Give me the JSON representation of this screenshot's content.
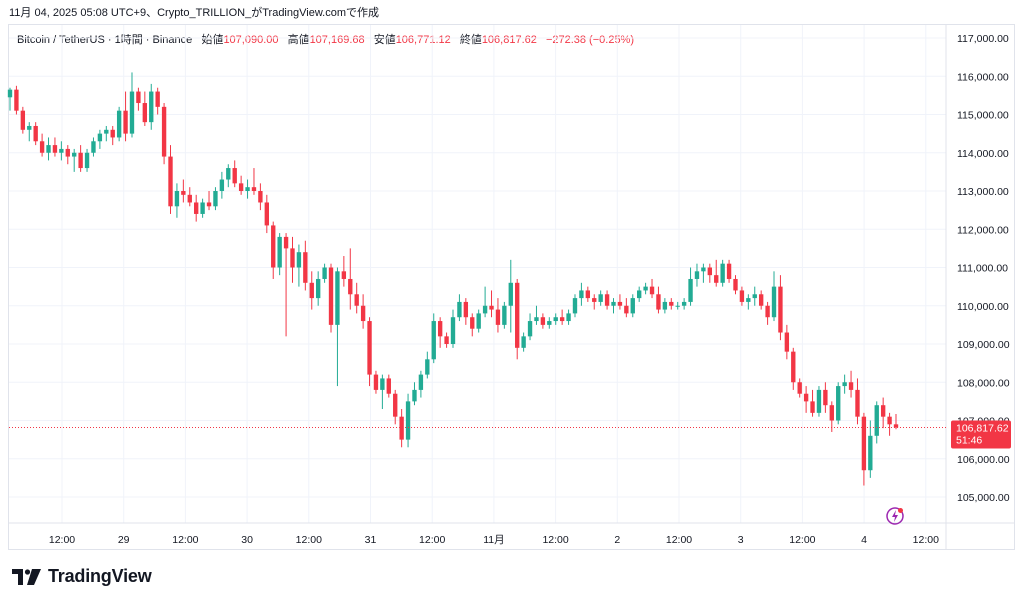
{
  "header": {
    "text": "11月 04, 2025 05:08 UTC+9、Crypto_TRILLION_がTradingView.comで作成"
  },
  "legend": {
    "symbol": "Bitcoin / TetherUS · 1時間 · Binance",
    "open_label": "始値",
    "open": "107,090.00",
    "high_label": "高値",
    "high": "107,169.68",
    "low_label": "安値",
    "low": "106,771.12",
    "close_label": "終値",
    "close": "106,817.62",
    "change": "−272.38 (−0.25%)"
  },
  "price_tag": {
    "price": "106,817.62",
    "countdown": "51:46"
  },
  "logo": {
    "text": "TradingView"
  },
  "colors": {
    "up": "#22ab94",
    "down": "#f23645",
    "grid": "#f0f3fa",
    "text": "#131722"
  },
  "chart_data": {
    "type": "candlestick",
    "y_axis_labels": [
      "117,000.00",
      "116,000.00",
      "115,000.00",
      "114,000.00",
      "113,000.00",
      "112,000.00",
      "111,000.00",
      "110,000.00",
      "109,000.00",
      "108,000.00",
      "107,000.00",
      "106,000.00",
      "105,000.00"
    ],
    "x_axis_labels": [
      "12:00",
      "29",
      "12:00",
      "30",
      "12:00",
      "31",
      "12:00",
      "11月",
      "12:00",
      "2",
      "12:00",
      "3",
      "12:00",
      "4",
      "12:00"
    ],
    "ylim": [
      104500,
      117300
    ],
    "last_price": 106817.62,
    "candles": [
      [
        115450,
        115700,
        115100,
        115650
      ],
      [
        115650,
        115750,
        115000,
        115100
      ],
      [
        115100,
        115200,
        114500,
        114600
      ],
      [
        114600,
        114800,
        114300,
        114700
      ],
      [
        114700,
        114800,
        114200,
        114300
      ],
      [
        114300,
        114500,
        113900,
        114000
      ],
      [
        114000,
        114400,
        113800,
        114200
      ],
      [
        114200,
        114400,
        113900,
        114000
      ],
      [
        114000,
        114300,
        113800,
        114100
      ],
      [
        114100,
        114200,
        113700,
        113900
      ],
      [
        113900,
        114100,
        113500,
        114000
      ],
      [
        114000,
        114200,
        113500,
        113600
      ],
      [
        113600,
        114100,
        113500,
        114000
      ],
      [
        114000,
        114400,
        113900,
        114300
      ],
      [
        114300,
        114600,
        114100,
        114500
      ],
      [
        114500,
        114700,
        114300,
        114600
      ],
      [
        114600,
        114700,
        114200,
        114400
      ],
      [
        114400,
        115200,
        114300,
        115100
      ],
      [
        115100,
        115600,
        114300,
        114500
      ],
      [
        114500,
        116100,
        114400,
        115600
      ],
      [
        115600,
        115700,
        115100,
        115300
      ],
      [
        115300,
        115600,
        114700,
        114800
      ],
      [
        114800,
        115800,
        114600,
        115600
      ],
      [
        115600,
        115700,
        115000,
        115200
      ],
      [
        115200,
        115300,
        113700,
        113900
      ],
      [
        113900,
        114200,
        112400,
        112600
      ],
      [
        112600,
        113200,
        112300,
        113000
      ],
      [
        113000,
        113300,
        112700,
        112900
      ],
      [
        112900,
        113100,
        112600,
        112700
      ],
      [
        112700,
        112900,
        112200,
        112400
      ],
      [
        112400,
        112800,
        112300,
        112700
      ],
      [
        112700,
        113000,
        112500,
        112600
      ],
      [
        112600,
        113100,
        112500,
        113000
      ],
      [
        113000,
        113500,
        112800,
        113300
      ],
      [
        113300,
        113700,
        113100,
        113600
      ],
      [
        113600,
        113800,
        113100,
        113200
      ],
      [
        113200,
        113400,
        112900,
        113000
      ],
      [
        113000,
        113300,
        112800,
        113100
      ],
      [
        113100,
        113600,
        112900,
        113000
      ],
      [
        113000,
        113200,
        112500,
        112700
      ],
      [
        112700,
        112900,
        111900,
        112100
      ],
      [
        112100,
        112200,
        110700,
        111000
      ],
      [
        111000,
        111900,
        110800,
        111800
      ],
      [
        111800,
        111900,
        109200,
        111500
      ],
      [
        111500,
        111800,
        110600,
        111000
      ],
      [
        111000,
        111600,
        110500,
        111400
      ],
      [
        111400,
        111700,
        110400,
        110600
      ],
      [
        110600,
        110900,
        109900,
        110200
      ],
      [
        110200,
        110900,
        110000,
        110700
      ],
      [
        110700,
        111100,
        110600,
        111000
      ],
      [
        111000,
        111100,
        109300,
        109500
      ],
      [
        109500,
        111000,
        107900,
        110900
      ],
      [
        110900,
        111300,
        110500,
        110700
      ],
      [
        110700,
        111500,
        109900,
        110300
      ],
      [
        110300,
        110600,
        109800,
        110000
      ],
      [
        110000,
        110300,
        109400,
        109600
      ],
      [
        109600,
        109700,
        107900,
        108200
      ],
      [
        108200,
        108300,
        107700,
        107800
      ],
      [
        107800,
        108200,
        107300,
        108100
      ],
      [
        108100,
        108200,
        107600,
        107700
      ],
      [
        107700,
        107800,
        106900,
        107100
      ],
      [
        107100,
        107300,
        106300,
        106500
      ],
      [
        106500,
        107700,
        106300,
        107500
      ],
      [
        107500,
        108000,
        107400,
        107800
      ],
      [
        107800,
        108300,
        107600,
        108200
      ],
      [
        108200,
        108800,
        108100,
        108600
      ],
      [
        108600,
        109800,
        108500,
        109600
      ],
      [
        109600,
        109700,
        108900,
        109200
      ],
      [
        109200,
        109300,
        108900,
        109000
      ],
      [
        109000,
        109900,
        108900,
        109700
      ],
      [
        109700,
        110300,
        109600,
        110100
      ],
      [
        110100,
        110200,
        109500,
        109700
      ],
      [
        109700,
        109800,
        109200,
        109400
      ],
      [
        109400,
        109900,
        109300,
        109800
      ],
      [
        109800,
        110500,
        109700,
        110000
      ],
      [
        110000,
        110400,
        109700,
        109900
      ],
      [
        109900,
        110200,
        109300,
        109500
      ],
      [
        109500,
        110100,
        109400,
        110000
      ],
      [
        110000,
        111200,
        109300,
        110600
      ],
      [
        110600,
        110700,
        108600,
        108900
      ],
      [
        108900,
        109300,
        108800,
        109200
      ],
      [
        109200,
        109800,
        109100,
        109600
      ],
      [
        109600,
        110000,
        109500,
        109700
      ],
      [
        109700,
        109800,
        109400,
        109500
      ],
      [
        109500,
        109700,
        109400,
        109600
      ],
      [
        109600,
        109800,
        109500,
        109700
      ],
      [
        109700,
        109900,
        109500,
        109600
      ],
      [
        109600,
        109900,
        109500,
        109800
      ],
      [
        109800,
        110300,
        109700,
        110200
      ],
      [
        110200,
        110600,
        110000,
        110400
      ],
      [
        110400,
        110500,
        110100,
        110200
      ],
      [
        110200,
        110300,
        109900,
        110100
      ],
      [
        110100,
        110400,
        110000,
        110300
      ],
      [
        110300,
        110400,
        109900,
        110000
      ],
      [
        110000,
        110200,
        109800,
        110100
      ],
      [
        110100,
        110300,
        109900,
        110000
      ],
      [
        110000,
        110200,
        109700,
        109800
      ],
      [
        109800,
        110300,
        109700,
        110200
      ],
      [
        110200,
        110500,
        110100,
        110400
      ],
      [
        110400,
        110600,
        110300,
        110500
      ],
      [
        110500,
        110700,
        110200,
        110300
      ],
      [
        110300,
        110500,
        109800,
        109900
      ],
      [
        109900,
        110200,
        109800,
        110100
      ],
      [
        110100,
        110200,
        109900,
        110000
      ],
      [
        110000,
        110100,
        109900,
        110000
      ],
      [
        110000,
        110200,
        109900,
        110100
      ],
      [
        110100,
        111000,
        110000,
        110700
      ],
      [
        110700,
        111100,
        110500,
        110900
      ],
      [
        110900,
        111100,
        110600,
        111000
      ],
      [
        111000,
        111100,
        110600,
        110800
      ],
      [
        110800,
        111200,
        110500,
        110600
      ],
      [
        110600,
        111200,
        110500,
        111100
      ],
      [
        111100,
        111200,
        110600,
        110700
      ],
      [
        110700,
        110800,
        110300,
        110400
      ],
      [
        110400,
        110500,
        110000,
        110100
      ],
      [
        110100,
        110300,
        109900,
        110200
      ],
      [
        110200,
        110500,
        110000,
        110300
      ],
      [
        110300,
        110400,
        109900,
        110000
      ],
      [
        110000,
        110100,
        109500,
        109700
      ],
      [
        109700,
        110900,
        109600,
        110500
      ],
      [
        110500,
        110800,
        109100,
        109300
      ],
      [
        109300,
        109500,
        108600,
        108800
      ],
      [
        108800,
        108900,
        107800,
        108000
      ],
      [
        108000,
        108100,
        107600,
        107700
      ],
      [
        107700,
        107900,
        107200,
        107500
      ],
      [
        107500,
        107800,
        107100,
        107200
      ],
      [
        107200,
        107900,
        107100,
        107800
      ],
      [
        107800,
        108000,
        107200,
        107400
      ],
      [
        107400,
        107500,
        106700,
        107000
      ],
      [
        107000,
        108000,
        106900,
        107900
      ],
      [
        107900,
        108200,
        107700,
        108000
      ],
      [
        108000,
        108300,
        107600,
        107800
      ],
      [
        107800,
        108100,
        106900,
        107100
      ],
      [
        107100,
        107200,
        105300,
        105700
      ],
      [
        105700,
        107000,
        105500,
        106600
      ],
      [
        106600,
        107500,
        106400,
        107400
      ],
      [
        107400,
        107600,
        106800,
        107100
      ],
      [
        107100,
        107200,
        106600,
        106900
      ],
      [
        106900,
        107170,
        106770,
        106818
      ]
    ]
  }
}
